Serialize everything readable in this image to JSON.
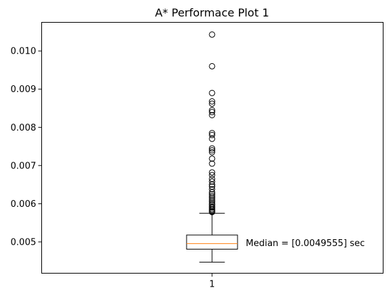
{
  "chart_data": {
    "type": "box",
    "title": "A* Performace Plot 1",
    "xlabel": "",
    "ylabel": "",
    "categories": [
      "1"
    ],
    "ylim": [
      0.00418,
      0.01075
    ],
    "yticks": [
      {
        "value": 0.005,
        "label": "0.005"
      },
      {
        "value": 0.006,
        "label": "0.006"
      },
      {
        "value": 0.007,
        "label": "0.007"
      },
      {
        "value": 0.008,
        "label": "0.008"
      },
      {
        "value": 0.009,
        "label": "0.009"
      },
      {
        "value": 0.01,
        "label": "0.010"
      }
    ],
    "box": {
      "whisker_low": 0.00447,
      "q1": 0.00481,
      "median": 0.0049555,
      "q3": 0.00518,
      "whisker_high": 0.00575
    },
    "outliers": [
      0.01043,
      0.0096,
      0.0089,
      0.00868,
      0.00862,
      0.00845,
      0.0084,
      0.00832,
      0.00785,
      0.0078,
      0.0077,
      0.00745,
      0.0074,
      0.00735,
      0.00718,
      0.00705,
      0.00682,
      0.00675,
      0.00665,
      0.00658,
      0.0065,
      0.00645,
      0.00638,
      0.0063,
      0.00625,
      0.0062,
      0.00615,
      0.0061,
      0.00605,
      0.006,
      0.00597,
      0.00593,
      0.0059,
      0.00586,
      0.00583,
      0.0058,
      0.00578
    ],
    "annotation": "Median = [0.0049555] sec",
    "grid": false,
    "colors": {
      "median": "#ff7f0e",
      "box": "#000000",
      "outlier": "#000000"
    }
  }
}
